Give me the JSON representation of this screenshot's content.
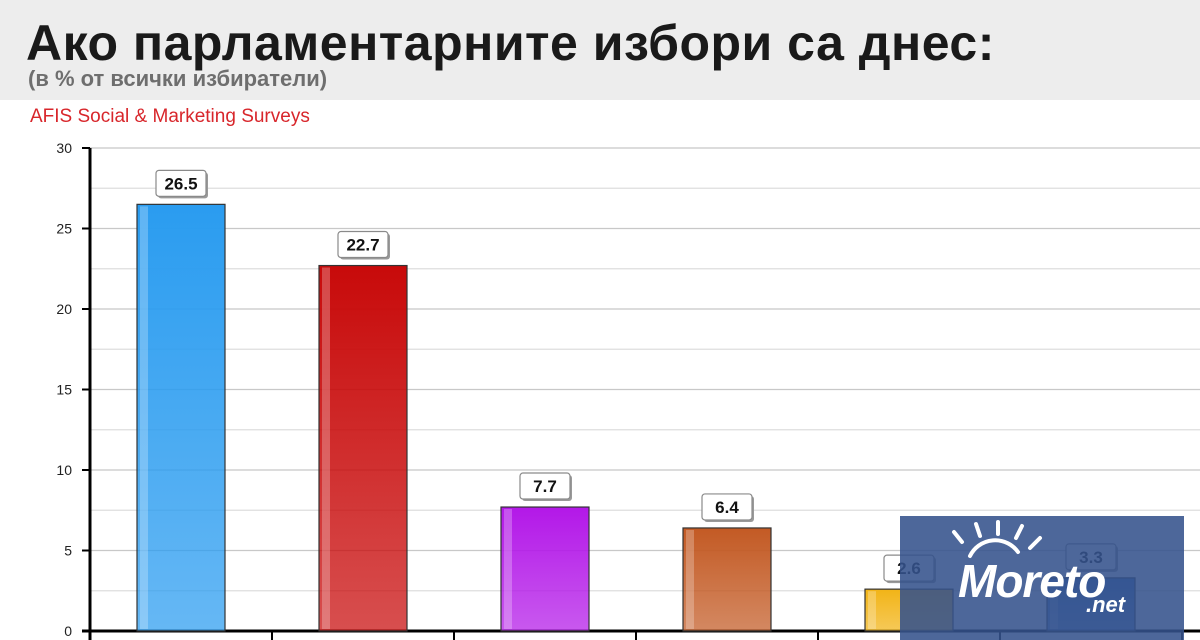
{
  "header": {
    "title": "Ако парламентарните избори са днес:",
    "subtitle": "(в % от всички избиратели)",
    "source": "AFIS Social & Marketing Surveys"
  },
  "chart_data": {
    "type": "bar",
    "title": "Ако парламентарните избори са днес:",
    "subtitle": "(в % от всички избиратели)",
    "ylim": [
      0,
      30
    ],
    "yticks": [
      0,
      5,
      10,
      15,
      20,
      25,
      30
    ],
    "grid": true,
    "categories": [
      "",
      "",
      "",
      "",
      "",
      ""
    ],
    "values": [
      26.5,
      22.7,
      7.7,
      6.4,
      2.6,
      3.3
    ],
    "labels": [
      "26.5",
      "22.7",
      "7.7",
      "6.4",
      "2.6",
      "3.3"
    ],
    "colors": [
      "#2a9cf0",
      "#c80a0a",
      "#b318e8",
      "#c35a24",
      "#f2b417",
      "#3b6fbf"
    ]
  },
  "watermark": {
    "brand": "Moreto",
    "suffix": ".net"
  }
}
